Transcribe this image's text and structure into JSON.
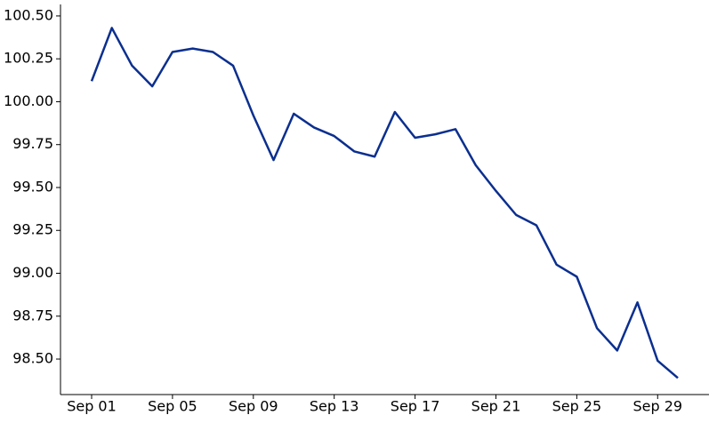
{
  "chart_data": {
    "type": "line",
    "categories": [
      "Sep 01",
      null,
      null,
      null,
      "Sep 05",
      null,
      null,
      null,
      "Sep 09",
      null,
      null,
      null,
      "Sep 13",
      null,
      null,
      null,
      "Sep 17",
      null,
      null,
      null,
      "Sep 21",
      null,
      null,
      null,
      "Sep 25",
      null,
      null,
      null,
      "Sep 29",
      null
    ],
    "series": [
      {
        "name": null,
        "color": "#0b2f8f",
        "values": [
          100.12,
          100.43,
          100.21,
          100.09,
          100.29,
          100.31,
          100.29,
          100.21,
          99.92,
          99.66,
          99.93,
          99.85,
          99.8,
          99.71,
          99.68,
          99.94,
          99.79,
          99.81,
          99.84,
          99.63,
          99.48,
          99.34,
          99.28,
          99.05,
          98.98,
          98.68,
          98.55,
          98.83,
          98.49,
          98.39
        ]
      }
    ],
    "ylim": [
      98.293,
      100.567
    ],
    "yticks": [
      {
        "value": 98.5,
        "label": "98.50"
      },
      {
        "value": 98.75,
        "label": "98.75"
      },
      {
        "value": 99,
        "label": "99.00"
      },
      {
        "value": 99.25,
        "label": "99.25"
      },
      {
        "value": 99.5,
        "label": "99.50"
      },
      {
        "value": 99.75,
        "label": "99.75"
      },
      {
        "value": 100,
        "label": "100.00"
      },
      {
        "value": 100.25,
        "label": "100.25"
      },
      {
        "value": 100.5,
        "label": "100.50"
      }
    ],
    "grid": false
  }
}
